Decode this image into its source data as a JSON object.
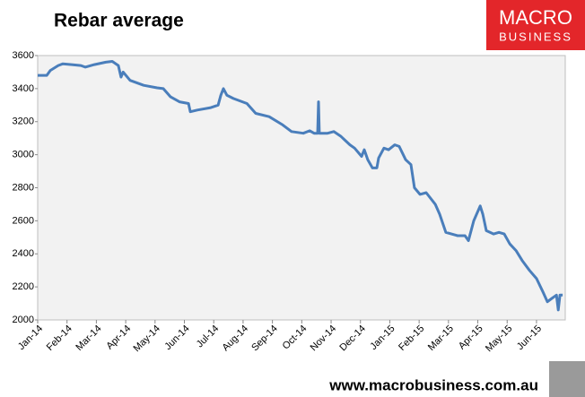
{
  "chart_data": {
    "type": "line",
    "title": "Rebar average",
    "logo_top": "MACRO",
    "logo_bottom": "BUSINESS",
    "source": "www.macrobusiness.com.au",
    "grid": false,
    "xlim": [
      0,
      17.98
    ],
    "xticks": [
      {
        "value": 0,
        "label": "Jan-14"
      },
      {
        "value": 1,
        "label": "Feb-14"
      },
      {
        "value": 2,
        "label": "Mar-14"
      },
      {
        "value": 3,
        "label": "Apr-14"
      },
      {
        "value": 4,
        "label": "May-14"
      },
      {
        "value": 5,
        "label": "Jun-14"
      },
      {
        "value": 6,
        "label": "Jul-14"
      },
      {
        "value": 7,
        "label": "Aug-14"
      },
      {
        "value": 8,
        "label": "Sep-14"
      },
      {
        "value": 9,
        "label": "Oct-14"
      },
      {
        "value": 10,
        "label": "Nov-14"
      },
      {
        "value": 11,
        "label": "Dec-14"
      },
      {
        "value": 12,
        "label": "Jan-15"
      },
      {
        "value": 13,
        "label": "Feb-15"
      },
      {
        "value": 14,
        "label": "Mar-15"
      },
      {
        "value": 15,
        "label": "Apr-15"
      },
      {
        "value": 16,
        "label": "May-15"
      },
      {
        "value": 17,
        "label": "Jun-15"
      }
    ],
    "ylim": [
      2000,
      3600
    ],
    "yticks": [
      2000,
      2200,
      2400,
      2600,
      2800,
      3000,
      3200,
      3400,
      3600
    ],
    "x": [
      0,
      0.31,
      0.43,
      0.7,
      0.86,
      1.16,
      1.47,
      1.62,
      1.93,
      2.32,
      2.54,
      2.75,
      2.84,
      2.91,
      3.15,
      3.61,
      4.07,
      4.28,
      4.53,
      4.83,
      5.14,
      5.2,
      5.44,
      5.9,
      6.15,
      6.24,
      6.33,
      6.45,
      6.67,
      7.13,
      7.43,
      7.89,
      8.35,
      8.65,
      9.05,
      9.27,
      9.42,
      9.54,
      9.57,
      9.6,
      9.88,
      10.09,
      10.34,
      10.64,
      10.8,
      11.04,
      11.13,
      11.25,
      11.41,
      11.56,
      11.62,
      11.8,
      11.96,
      12.17,
      12.32,
      12.54,
      12.72,
      12.84,
      13.03,
      13.24,
      13.55,
      13.7,
      13.91,
      14.31,
      14.56,
      14.68,
      14.86,
      15.08,
      15.17,
      15.29,
      15.54,
      15.72,
      15.9,
      16.09,
      16.3,
      16.51,
      16.76,
      17.0,
      17.22,
      17.37,
      17.52,
      17.68,
      17.74,
      17.8,
      17.89
    ],
    "series": [
      {
        "name": "Rebar average",
        "color": "#4a7ebb",
        "values": [
          3480,
          3480,
          3510,
          3540,
          3550,
          3545,
          3540,
          3530,
          3545,
          3560,
          3565,
          3540,
          3470,
          3500,
          3450,
          3420,
          3405,
          3400,
          3350,
          3320,
          3310,
          3260,
          3270,
          3285,
          3300,
          3360,
          3400,
          3360,
          3340,
          3310,
          3250,
          3230,
          3180,
          3140,
          3130,
          3145,
          3130,
          3130,
          3320,
          3130,
          3130,
          3140,
          3110,
          3060,
          3040,
          2990,
          3030,
          2970,
          2920,
          2920,
          2980,
          3040,
          3030,
          3060,
          3050,
          2970,
          2940,
          2800,
          2760,
          2770,
          2700,
          2640,
          2530,
          2510,
          2510,
          2480,
          2600,
          2690,
          2640,
          2540,
          2520,
          2530,
          2520,
          2460,
          2420,
          2360,
          2300,
          2250,
          2170,
          2110,
          2130,
          2150,
          2060,
          2150,
          2150
        ]
      }
    ]
  }
}
